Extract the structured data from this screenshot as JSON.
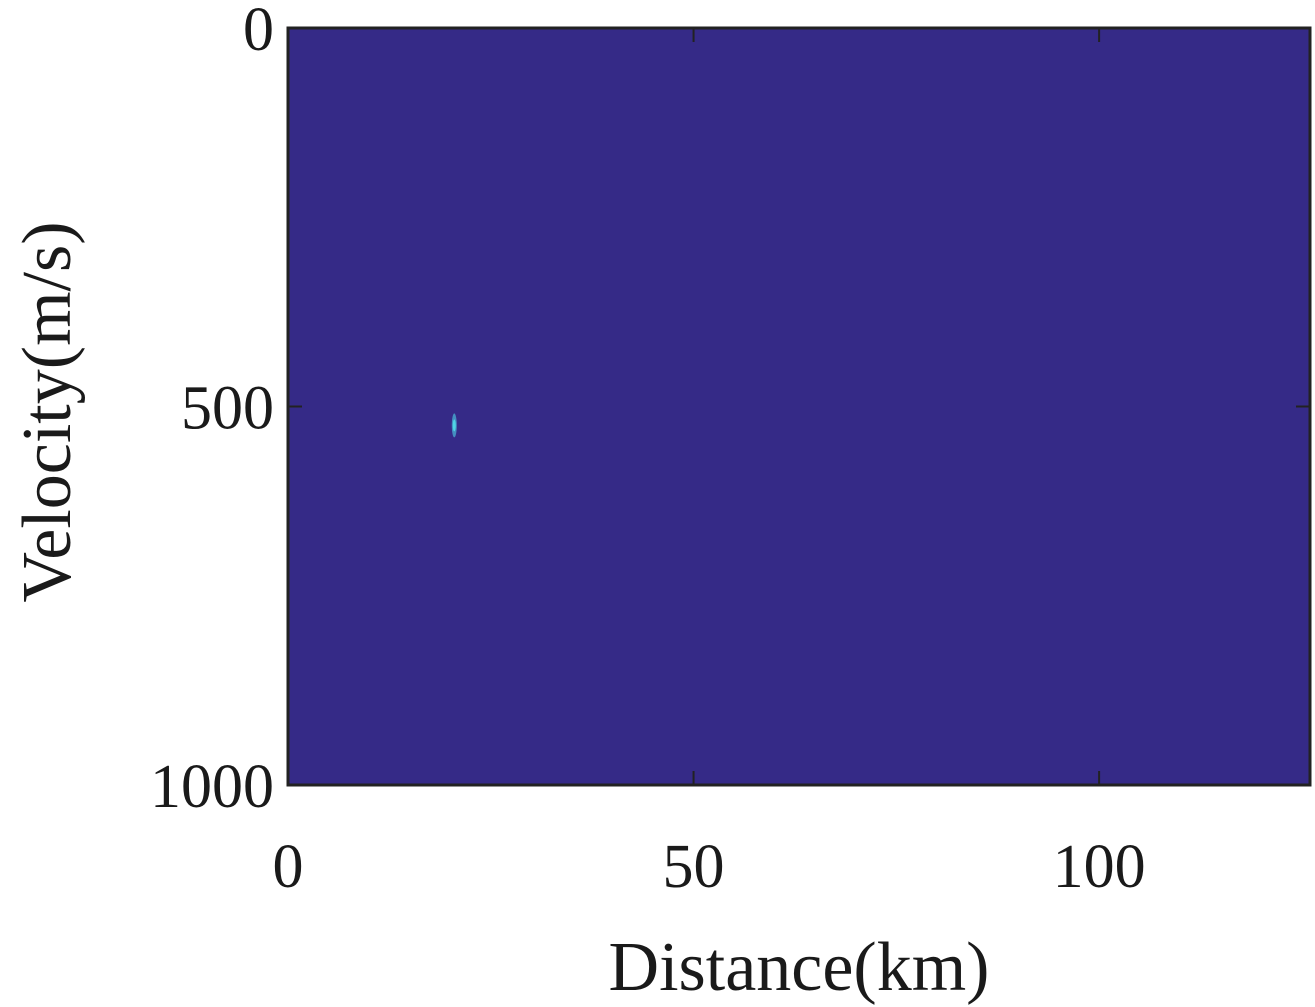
{
  "chart_data": {
    "type": "heatmap",
    "title": "",
    "xlabel": "Distance(km)",
    "ylabel": "Velocity(m/s)",
    "xlim": [
      0,
      126
    ],
    "ylim": [
      0,
      1000
    ],
    "y_reversed": true,
    "xticks": [
      0,
      50,
      100
    ],
    "xtick_labels": [
      "0",
      "50",
      "100"
    ],
    "yticks": [
      0,
      500,
      1000
    ],
    "ytick_labels": [
      "0",
      "500",
      "1000"
    ],
    "background_value_color": "#352a87",
    "peaks": [
      {
        "x": 20.5,
        "y": 525,
        "color": "#4fd3e6"
      }
    ],
    "grid": false,
    "colorbar": false
  }
}
